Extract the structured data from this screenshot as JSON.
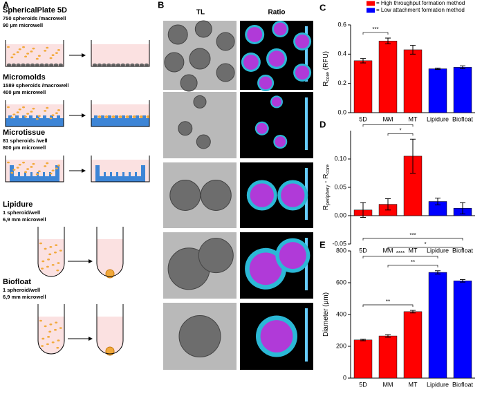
{
  "panel_a": {
    "label": "A",
    "methods": [
      {
        "name": "SphericalPlate 5D",
        "count": "750 spheroids /macrowell",
        "size": "90 µm microwell"
      },
      {
        "name": "Micromolds",
        "count": "1589 spheroids /macrowell",
        "size": "400 µm microwell"
      },
      {
        "name": "Microtissue",
        "count": "81 spheroids /well",
        "size": "800 µm microwell"
      },
      {
        "name": "Lipidure",
        "count": "1 spheroid/well",
        "size": "6,9 mm microwell"
      },
      {
        "name": "Biofloat",
        "count": "1 spheroid/well",
        "size": "6,9 mm microwell"
      }
    ]
  },
  "panel_b": {
    "label": "B",
    "columns": [
      "TL",
      "Ratio"
    ]
  },
  "legend": [
    {
      "name": "= High throughput formation method",
      "color": "#ff0000"
    },
    {
      "name": "= Low attachment formation method",
      "color": "#0000ff"
    }
  ],
  "chart_data": [
    {
      "type": "bar",
      "panel": "C",
      "categories": [
        "5D",
        "MM",
        "MT",
        "Lipidure",
        "Biofloat"
      ],
      "values": [
        0.355,
        0.49,
        0.43,
        0.3,
        0.31
      ],
      "errors": [
        0.015,
        0.02,
        0.03,
        0.005,
        0.01
      ],
      "colors": [
        "#ff0000",
        "#ff0000",
        "#ff0000",
        "#0000ff",
        "#0000ff"
      ],
      "ylabel": [
        "R",
        "core",
        " (RFU)"
      ],
      "ylim": [
        0,
        0.6
      ],
      "yticks": [
        {
          "value": 0,
          "label": "0.0"
        },
        0.2,
        0.4,
        0.6
      ],
      "significance": [
        {
          "between": [
            "5D",
            "MM"
          ],
          "label": "***"
        }
      ]
    },
    {
      "type": "bar",
      "panel": "D",
      "categories": [
        "5D",
        "MM",
        "MT",
        "Lipidure",
        "Biofloat"
      ],
      "values": [
        0.01,
        0.02,
        0.105,
        0.025,
        0.013
      ],
      "errors": [
        0.013,
        0.01,
        0.03,
        0.006,
        0.01
      ],
      "colors": [
        "#ff0000",
        "#ff0000",
        "#ff0000",
        "#0000ff",
        "#0000ff"
      ],
      "ylabel": [
        "R",
        "periphery",
        " - R",
        "core"
      ],
      "ylim": [
        -0.05,
        0.15
      ],
      "yticks": [
        {
          "value": -0.05,
          "label": "-0.05"
        },
        {
          "value": 0,
          "label": "0.00"
        },
        0.05,
        {
          "value": 0.1,
          "label": "0.10"
        }
      ],
      "significance": [
        {
          "between": [
            "MM",
            "MT"
          ],
          "label": "*"
        },
        {
          "between": [
            "5D",
            "MT"
          ],
          "label": "*"
        }
      ]
    },
    {
      "type": "bar",
      "panel": "E",
      "categories": [
        "5D",
        "MM",
        "MT",
        "Lipidure",
        "Biofloat"
      ],
      "values": [
        240,
        265,
        418,
        665,
        612
      ],
      "errors": [
        5,
        8,
        8,
        10,
        8
      ],
      "colors": [
        "#ff0000",
        "#ff0000",
        "#ff0000",
        "#0000ff",
        "#0000ff"
      ],
      "ylabel": [
        "Diameter (µm)"
      ],
      "ylim": [
        0,
        800
      ],
      "yticks": [
        0,
        200,
        400,
        600,
        800
      ],
      "significance": [
        {
          "between": [
            "5D",
            "MT"
          ],
          "label": "**"
        },
        {
          "between": [
            "MM",
            "Lipidure"
          ],
          "label": "**"
        },
        {
          "between": [
            "5D",
            "Lipidure"
          ],
          "label": "****"
        },
        {
          "between": [
            "MM",
            "Biofloat"
          ],
          "label": "*"
        },
        {
          "between": [
            "5D",
            "Biofloat"
          ],
          "label": "***"
        }
      ]
    }
  ]
}
